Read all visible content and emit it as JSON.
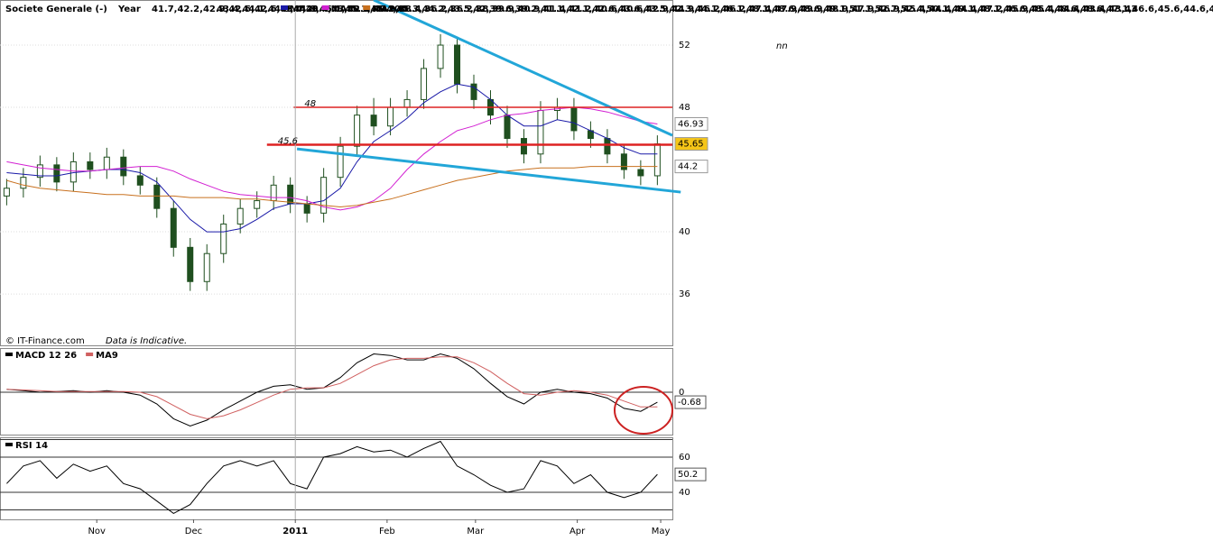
{
  "chart_data": [
    {
      "type": "candlestick",
      "title": "Societe Generale (-)",
      "period": "Year",
      "low": [
        41.7,
        42.2,
        42.9,
        42.6,
        42.6,
        43.4,
        43.4,
        43.0,
        42.4,
        40.9,
        38.4,
        36.2,
        36.2,
        38.0,
        39.9,
        40.9,
        41.4,
        41.2,
        40.6,
        40.6,
        42.9,
        44.9,
        46.2,
        46.2,
        47.4,
        47.9,
        49.9,
        48.9,
        47.9,
        46.9,
        45.4,
        44.4,
        44.4,
        47.2,
        45.9,
        45.4,
        44.4,
        43.4,
        43.0,
        43.0
      ],
      "high": [
        43.4,
        44.1,
        44.9,
        44.8,
        45.1,
        45.1,
        45.4,
        45.3,
        44.2,
        43.5,
        42.0,
        39.6,
        39.2,
        41.1,
        42.1,
        42.6,
        43.6,
        43.5,
        42.3,
        44.1,
        46.1,
        48.1,
        48.6,
        48.6,
        49.1,
        51.1,
        52.7,
        52.4,
        50.1,
        49.1,
        48.1,
        46.6,
        48.4,
        48.6,
        48.6,
        47.1,
        46.6,
        45.6,
        44.6,
        46.2
      ],
      "source": "© IT-Finance.com",
      "note": "Data is Indicative.",
      "corner_text": "nn",
      "xlim": [
        -0.4,
        39.9
      ],
      "ylim": [
        32.7,
        54.9
      ],
      "yticks": [
        36,
        40,
        48,
        52
      ],
      "grid": true,
      "candle_color": "#1f4f1f",
      "open": [
        42.3,
        42.8,
        43.5,
        44.3,
        43.2,
        44.5,
        44.0,
        44.8,
        43.6,
        43.0,
        41.5,
        39.0,
        36.8,
        38.6,
        40.5,
        41.5,
        42.0,
        43.0,
        41.8,
        41.2,
        43.5,
        45.5,
        47.5,
        46.8,
        48.0,
        48.5,
        50.5,
        52.0,
        49.5,
        48.5,
        47.5,
        46.0,
        45.0,
        47.8,
        48.0,
        46.5,
        46.0,
        45.0,
        44.0,
        43.6
      ],
      "close": [
        42.8,
        43.5,
        44.3,
        43.2,
        44.5,
        44.0,
        44.8,
        43.6,
        43.0,
        41.5,
        39.0,
        36.8,
        38.6,
        40.5,
        41.5,
        42.0,
        43.0,
        41.8,
        41.2,
        43.5,
        45.5,
        47.5,
        46.8,
        48.0,
        48.5,
        50.5,
        52.0,
        49.5,
        48.5,
        47.5,
        46.0,
        45.0,
        47.8,
        48.0,
        46.5,
        46.0,
        45.0,
        44.0,
        43.6,
        45.65
      ],
      "series": [
        {
          "name": "MA20",
          "color": "#1a1aa8",
          "values": [
            43.8,
            43.7,
            43.6,
            43.6,
            43.8,
            43.9,
            44.0,
            44.0,
            43.8,
            43.2,
            42.0,
            40.8,
            40.0,
            40.0,
            40.2,
            40.8,
            41.5,
            41.8,
            41.8,
            42.0,
            42.8,
            44.5,
            45.8,
            46.5,
            47.3,
            48.3,
            49.0,
            49.5,
            49.3,
            48.5,
            47.5,
            46.8,
            46.8,
            47.2,
            47.0,
            46.5,
            46.0,
            45.4,
            45.0,
            45.0
          ]
        },
        {
          "name": "MA50",
          "color": "#d21fd2",
          "values": [
            44.5,
            44.3,
            44.1,
            44.0,
            43.9,
            43.9,
            44.0,
            44.1,
            44.2,
            44.2,
            43.9,
            43.4,
            43.0,
            42.6,
            42.4,
            42.3,
            42.2,
            42.2,
            42.0,
            41.6,
            41.4,
            41.6,
            42.0,
            42.8,
            44.0,
            45.0,
            45.8,
            46.5,
            46.8,
            47.2,
            47.5,
            47.6,
            47.8,
            47.9,
            48.0,
            47.9,
            47.7,
            47.4,
            47.1,
            46.93
          ]
        },
        {
          "name": "MA200",
          "color": "#c8701e",
          "values": [
            43.3,
            43.0,
            42.8,
            42.7,
            42.6,
            42.5,
            42.4,
            42.4,
            42.3,
            42.3,
            42.3,
            42.2,
            42.2,
            42.2,
            42.1,
            42.1,
            42.0,
            41.9,
            41.8,
            41.7,
            41.6,
            41.7,
            41.9,
            42.1,
            42.4,
            42.7,
            43.0,
            43.3,
            43.5,
            43.7,
            43.9,
            44.0,
            44.1,
            44.1,
            44.1,
            44.2,
            44.2,
            44.2,
            44.2,
            44.2
          ]
        }
      ],
      "last_labels": [
        {
          "value": 46.93,
          "label": "46.93",
          "color": "#d21fd2",
          "background": "#ffffff"
        },
        {
          "value": 45.65,
          "label": "45.65",
          "color": "#000000",
          "background": "#f5c518"
        },
        {
          "value": 44.2,
          "label": "44.2",
          "color": "#c8701e",
          "background": "#ffffff"
        }
      ],
      "levels": [
        {
          "value": 48,
          "label": "48",
          "from": 17.2,
          "color": "#dd2222"
        },
        {
          "value": 45.6,
          "label": "45,6",
          "from": 15.6,
          "color": "#dd2222"
        }
      ],
      "trendlines": [
        {
          "x": [
            22.0,
            39.9
          ],
          "y": [
            54.9,
            46.2
          ],
          "color": "#22a6d8"
        },
        {
          "x": [
            17.4,
            40.4
          ],
          "y": [
            45.33,
            42.55
          ],
          "color": "#22a6d8"
        }
      ]
    },
    {
      "type": "line",
      "xlim": [
        -0.4,
        39.9
      ],
      "ylim": [
        -2.88,
        3.0
      ],
      "yticks": [
        0
      ],
      "series": [
        {
          "name": "MACD 12 26",
          "color": "#000000",
          "values": [
            0.2,
            0.1,
            0.0,
            0.05,
            0.1,
            0.0,
            0.1,
            0.0,
            -0.2,
            -0.8,
            -1.8,
            -2.3,
            -1.9,
            -1.2,
            -0.6,
            0.0,
            0.4,
            0.5,
            0.2,
            0.3,
            1.0,
            2.0,
            2.6,
            2.5,
            2.2,
            2.2,
            2.6,
            2.3,
            1.6,
            0.6,
            -0.3,
            -0.8,
            0.0,
            0.2,
            0.0,
            -0.1,
            -0.4,
            -1.1,
            -1.3,
            -0.68
          ]
        },
        {
          "name": "MA9",
          "color": "#d06060",
          "values": [
            0.2,
            0.15,
            0.1,
            0.05,
            0.05,
            0.05,
            0.05,
            0.05,
            0.0,
            -0.3,
            -0.9,
            -1.5,
            -1.8,
            -1.6,
            -1.2,
            -0.7,
            -0.2,
            0.2,
            0.3,
            0.3,
            0.6,
            1.2,
            1.8,
            2.2,
            2.3,
            2.3,
            2.4,
            2.4,
            2.0,
            1.4,
            0.6,
            -0.1,
            -0.2,
            0.0,
            0.1,
            0.0,
            -0.2,
            -0.6,
            -1.0,
            -1.0
          ]
        }
      ],
      "last_label": {
        "value": -0.68,
        "label": "-0.68"
      }
    },
    {
      "type": "line",
      "xlim": [
        -0.4,
        39.9
      ],
      "ylim": [
        24.6,
        70.8
      ],
      "yticks": [
        40,
        60
      ],
      "levels": [
        30,
        70
      ],
      "series": [
        {
          "name": "RSI 14",
          "color": "#000000",
          "values": [
            45,
            55,
            58,
            48,
            56,
            52,
            55,
            45,
            42,
            35,
            28,
            33,
            45,
            55,
            58,
            55,
            58,
            45,
            42,
            60,
            62,
            66,
            63,
            64,
            60,
            65,
            69,
            55,
            50,
            44,
            40,
            42,
            58,
            55,
            45,
            50,
            40,
            37,
            40,
            50.2
          ]
        }
      ],
      "last_label": 50.2,
      "xticks": [
        {
          "value": 5.4,
          "label": "Nov"
        },
        {
          "value": 11.2,
          "label": "Dec"
        },
        {
          "value": 17.3,
          "label": "2011",
          "bold": true
        },
        {
          "value": 22.8,
          "label": "Feb"
        },
        {
          "value": 28.1,
          "label": "Mar"
        },
        {
          "value": 34.2,
          "label": "Apr"
        },
        {
          "value": 39.2,
          "label": "May"
        }
      ]
    }
  ]
}
